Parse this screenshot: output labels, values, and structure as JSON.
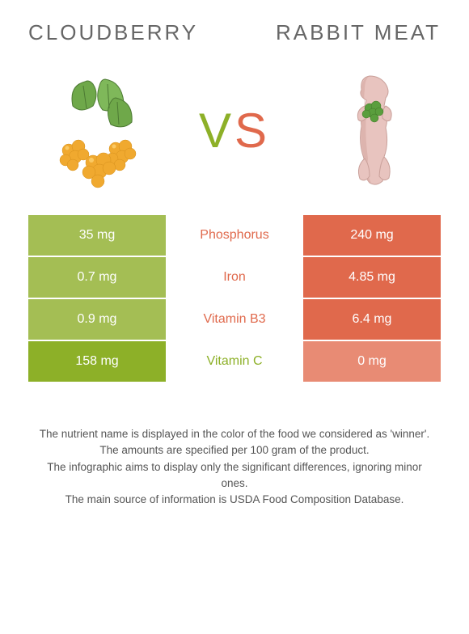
{
  "header": {
    "left_title": "CLOUDBERRY",
    "right_title": "RABBIT MEAT",
    "vs_v": "V",
    "vs_s": "S"
  },
  "colors": {
    "left_strong": "#8db028",
    "left_weak": "#a4be54",
    "right_strong": "#e0694c",
    "right_weak": "#e88b74",
    "nutrient_left_color": "#e0694c",
    "nutrient_right_color": "#8db028"
  },
  "rows": [
    {
      "nutrient": "Phosphorus",
      "left_value": "35 mg",
      "right_value": "240 mg",
      "winner": "right"
    },
    {
      "nutrient": "Iron",
      "left_value": "0.7 mg",
      "right_value": "4.85 mg",
      "winner": "right"
    },
    {
      "nutrient": "Vitamin B3",
      "left_value": "0.9 mg",
      "right_value": "6.4 mg",
      "winner": "right"
    },
    {
      "nutrient": "Vitamin C",
      "left_value": "158 mg",
      "right_value": "0 mg",
      "winner": "left"
    }
  ],
  "footer": {
    "line1": "The nutrient name is displayed in the color of the food we considered as 'winner'.",
    "line2": "The amounts are specified per 100 gram of the product.",
    "line3": "The infographic aims to display only the significant differences, ignoring minor ones.",
    "line4": "The main source of information is USDA Food Composition Database."
  }
}
